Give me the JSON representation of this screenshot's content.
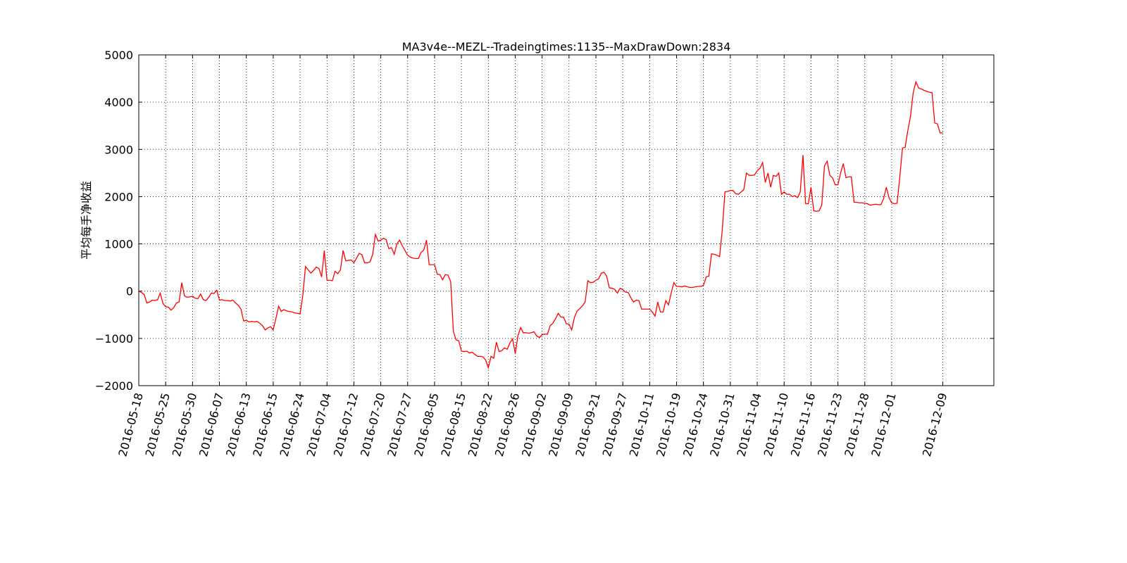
{
  "chart_data": {
    "type": "line",
    "title": "MA3v4e--MEZL--Tradeingtimes:1135--MaxDrawDown:2834",
    "y_label": "平均每手净收益",
    "color": "#ff0000",
    "grid": true,
    "xlim": [
      0,
      318
    ],
    "ylim": [
      -2000,
      5000
    ],
    "yticks": [
      {
        "value": -2000,
        "label": "−2000"
      },
      {
        "value": -1000,
        "label": "−1000"
      },
      0,
      1000,
      2000,
      3000,
      4000,
      5000
    ],
    "categories": [
      "2016-05-18",
      null,
      null,
      null,
      null,
      null,
      null,
      null,
      null,
      null,
      "2016-05-25",
      null,
      null,
      null,
      null,
      null,
      null,
      null,
      null,
      null,
      "2016-05-30",
      null,
      null,
      null,
      null,
      null,
      null,
      null,
      null,
      null,
      "2016-06-07",
      null,
      null,
      null,
      null,
      null,
      null,
      null,
      null,
      null,
      "2016-06-13",
      null,
      null,
      null,
      null,
      null,
      null,
      null,
      null,
      null,
      "2016-06-15",
      null,
      null,
      null,
      null,
      null,
      null,
      null,
      null,
      null,
      "2016-06-24",
      null,
      null,
      null,
      null,
      null,
      null,
      null,
      null,
      null,
      "2016-07-04",
      null,
      null,
      null,
      null,
      null,
      null,
      null,
      null,
      null,
      "2016-07-12",
      null,
      null,
      null,
      null,
      null,
      null,
      null,
      null,
      null,
      "2016-07-20",
      null,
      null,
      null,
      null,
      null,
      null,
      null,
      null,
      null,
      "2016-07-27",
      null,
      null,
      null,
      null,
      null,
      null,
      null,
      null,
      null,
      "2016-08-05",
      null,
      null,
      null,
      null,
      null,
      null,
      null,
      null,
      null,
      "2016-08-15",
      null,
      null,
      null,
      null,
      null,
      null,
      null,
      null,
      null,
      "2016-08-22",
      null,
      null,
      null,
      null,
      null,
      null,
      null,
      null,
      null,
      "2016-08-26",
      null,
      null,
      null,
      null,
      null,
      null,
      null,
      null,
      null,
      "2016-09-02",
      null,
      null,
      null,
      null,
      null,
      null,
      null,
      null,
      null,
      "2016-09-09",
      null,
      null,
      null,
      null,
      null,
      null,
      null,
      null,
      null,
      "2016-09-21",
      null,
      null,
      null,
      null,
      null,
      null,
      null,
      null,
      null,
      "2016-09-27",
      null,
      null,
      null,
      null,
      null,
      null,
      null,
      null,
      null,
      "2016-10-11",
      null,
      null,
      null,
      null,
      null,
      null,
      null,
      null,
      null,
      "2016-10-19",
      null,
      null,
      null,
      null,
      null,
      null,
      null,
      null,
      null,
      "2016-10-24",
      null,
      null,
      null,
      null,
      null,
      null,
      null,
      null,
      null,
      "2016-10-31",
      null,
      null,
      null,
      null,
      null,
      null,
      null,
      null,
      null,
      "2016-11-04",
      null,
      null,
      null,
      null,
      null,
      null,
      null,
      null,
      null,
      "2016-11-10",
      null,
      null,
      null,
      null,
      null,
      null,
      null,
      null,
      null,
      "2016-11-16",
      null,
      null,
      null,
      null,
      null,
      null,
      null,
      null,
      null,
      "2016-11-23",
      null,
      null,
      null,
      null,
      null,
      null,
      null,
      null,
      null,
      "2016-11-28",
      null,
      null,
      null,
      null,
      null,
      null,
      null,
      null,
      null,
      "2016-12-01",
      null,
      null,
      null,
      null,
      null,
      null,
      null,
      null,
      null,
      null,
      null,
      null,
      null,
      null,
      null,
      null,
      null,
      null,
      "2016-12-09"
    ],
    "values": [
      0,
      -30,
      -70,
      -250,
      -230,
      -190,
      -200,
      -180,
      -40,
      -260,
      -330,
      -340,
      -400,
      -350,
      -250,
      -230,
      180,
      -100,
      -130,
      -120,
      -110,
      -150,
      -160,
      -60,
      -180,
      -200,
      -130,
      -40,
      -50,
      20,
      -190,
      -180,
      -200,
      -200,
      -210,
      -190,
      -250,
      -300,
      -380,
      -630,
      -620,
      -650,
      -640,
      -650,
      -640,
      -680,
      -730,
      -820,
      -780,
      -750,
      -820,
      -580,
      -320,
      -430,
      -390,
      -420,
      -430,
      -440,
      -460,
      -470,
      -480,
      -100,
      520,
      450,
      380,
      440,
      510,
      480,
      300,
      860,
      230,
      230,
      220,
      420,
      370,
      450,
      860,
      640,
      650,
      660,
      600,
      700,
      800,
      770,
      600,
      600,
      620,
      780,
      1200,
      1060,
      1080,
      1120,
      1090,
      900,
      920,
      780,
      1000,
      1080,
      960,
      860,
      760,
      720,
      700,
      690,
      690,
      820,
      870,
      1080,
      560,
      560,
      560,
      360,
      350,
      240,
      350,
      340,
      200,
      -850,
      -1030,
      -1050,
      -1270,
      -1280,
      -1270,
      -1310,
      -1290,
      -1340,
      -1380,
      -1380,
      -1390,
      -1460,
      -1620,
      -1380,
      -1420,
      -1080,
      -1280,
      -1260,
      -1200,
      -1230,
      -1100,
      -1010,
      -1320,
      -950,
      -770,
      -880,
      -880,
      -890,
      -880,
      -860,
      -950,
      -980,
      -920,
      -910,
      -910,
      -730,
      -680,
      -580,
      -470,
      -550,
      -550,
      -690,
      -700,
      -820,
      -560,
      -420,
      -370,
      -310,
      -230,
      220,
      180,
      190,
      230,
      260,
      380,
      400,
      320,
      70,
      60,
      40,
      -40,
      60,
      30,
      -20,
      -30,
      -140,
      -230,
      -190,
      -200,
      -380,
      -380,
      -380,
      -380,
      -440,
      -530,
      -230,
      -440,
      -440,
      -200,
      -290,
      -40,
      180,
      100,
      100,
      90,
      110,
      90,
      80,
      80,
      90,
      100,
      100,
      120,
      300,
      320,
      790,
      780,
      760,
      730,
      1300,
      2100,
      2110,
      2130,
      2130,
      2060,
      2050,
      2100,
      2150,
      2500,
      2450,
      2450,
      2460,
      2550,
      2600,
      2720,
      2300,
      2500,
      2200,
      2450,
      2430,
      2500,
      2050,
      2100,
      2050,
      2050,
      2000,
      2020,
      1980,
      2100,
      2880,
      1850,
      1850,
      2200,
      1700,
      1690,
      1700,
      1820,
      2650,
      2750,
      2450,
      2400,
      2250,
      2250,
      2500,
      2700,
      2400,
      2420,
      2420,
      1880,
      1880,
      1870,
      1870,
      1860,
      1850,
      1820,
      1830,
      1840,
      1830,
      1830,
      1960,
      2200,
      1980,
      1870,
      1850,
      1860,
      2400,
      3030,
      3040,
      3400,
      3700,
      4200,
      4430,
      4300,
      4280,
      4250,
      4230,
      4210,
      4200,
      3560,
      3540,
      3350,
      3350
    ]
  }
}
